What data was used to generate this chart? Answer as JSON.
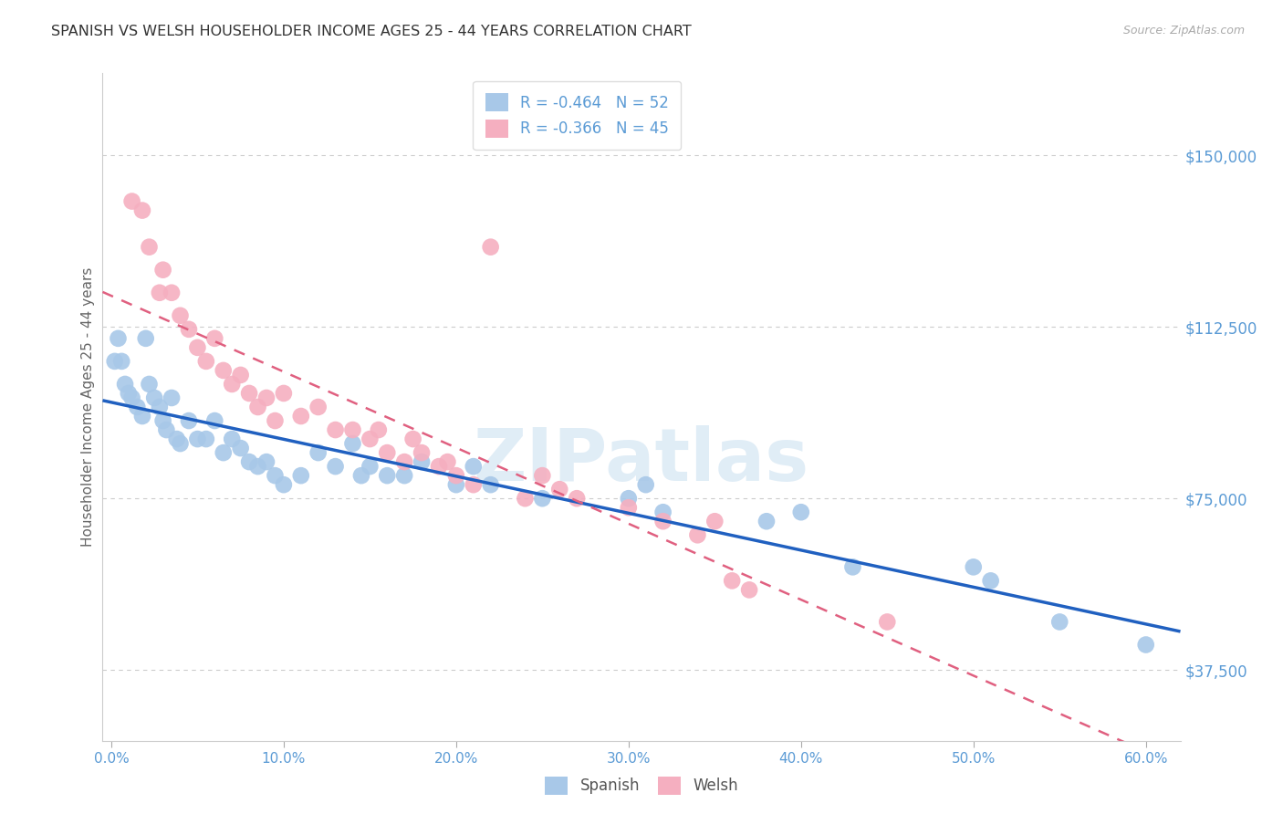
{
  "title": "SPANISH VS WELSH HOUSEHOLDER INCOME AGES 25 - 44 YEARS CORRELATION CHART",
  "source": "Source: ZipAtlas.com",
  "xlabel_ticks": [
    "0.0%",
    "10.0%",
    "20.0%",
    "30.0%",
    "40.0%",
    "50.0%",
    "60.0%"
  ],
  "xlabel_vals": [
    0.0,
    0.1,
    0.2,
    0.3,
    0.4,
    0.5,
    0.6
  ],
  "ylabel": "Householder Income Ages 25 - 44 years",
  "ylabel_ticks": [
    "$37,500",
    "$75,000",
    "$112,500",
    "$150,000"
  ],
  "ylabel_vals": [
    37500,
    75000,
    112500,
    150000
  ],
  "xlim": [
    -0.005,
    0.62
  ],
  "ylim": [
    22000,
    168000
  ],
  "legend1_label": "R = -0.464   N = 52",
  "legend2_label": "R = -0.366   N = 45",
  "watermark": "ZIPatlas",
  "spanish_color": "#a8c8e8",
  "welsh_color": "#f5afc0",
  "trend_spanish_color": "#2060c0",
  "trend_welsh_color": "#e06080",
  "spanish_data": [
    [
      0.002,
      105000
    ],
    [
      0.004,
      110000
    ],
    [
      0.006,
      105000
    ],
    [
      0.008,
      100000
    ],
    [
      0.01,
      98000
    ],
    [
      0.012,
      97000
    ],
    [
      0.015,
      95000
    ],
    [
      0.018,
      93000
    ],
    [
      0.02,
      110000
    ],
    [
      0.022,
      100000
    ],
    [
      0.025,
      97000
    ],
    [
      0.028,
      95000
    ],
    [
      0.03,
      92000
    ],
    [
      0.032,
      90000
    ],
    [
      0.035,
      97000
    ],
    [
      0.038,
      88000
    ],
    [
      0.04,
      87000
    ],
    [
      0.045,
      92000
    ],
    [
      0.05,
      88000
    ],
    [
      0.055,
      88000
    ],
    [
      0.06,
      92000
    ],
    [
      0.065,
      85000
    ],
    [
      0.07,
      88000
    ],
    [
      0.075,
      86000
    ],
    [
      0.08,
      83000
    ],
    [
      0.085,
      82000
    ],
    [
      0.09,
      83000
    ],
    [
      0.095,
      80000
    ],
    [
      0.1,
      78000
    ],
    [
      0.11,
      80000
    ],
    [
      0.12,
      85000
    ],
    [
      0.13,
      82000
    ],
    [
      0.14,
      87000
    ],
    [
      0.145,
      80000
    ],
    [
      0.15,
      82000
    ],
    [
      0.16,
      80000
    ],
    [
      0.17,
      80000
    ],
    [
      0.18,
      83000
    ],
    [
      0.2,
      78000
    ],
    [
      0.21,
      82000
    ],
    [
      0.22,
      78000
    ],
    [
      0.25,
      75000
    ],
    [
      0.3,
      75000
    ],
    [
      0.31,
      78000
    ],
    [
      0.32,
      72000
    ],
    [
      0.38,
      70000
    ],
    [
      0.4,
      72000
    ],
    [
      0.43,
      60000
    ],
    [
      0.5,
      60000
    ],
    [
      0.51,
      57000
    ],
    [
      0.55,
      48000
    ],
    [
      0.6,
      43000
    ]
  ],
  "welsh_data": [
    [
      0.012,
      140000
    ],
    [
      0.018,
      138000
    ],
    [
      0.022,
      130000
    ],
    [
      0.028,
      120000
    ],
    [
      0.03,
      125000
    ],
    [
      0.035,
      120000
    ],
    [
      0.04,
      115000
    ],
    [
      0.045,
      112000
    ],
    [
      0.05,
      108000
    ],
    [
      0.055,
      105000
    ],
    [
      0.06,
      110000
    ],
    [
      0.065,
      103000
    ],
    [
      0.07,
      100000
    ],
    [
      0.075,
      102000
    ],
    [
      0.08,
      98000
    ],
    [
      0.085,
      95000
    ],
    [
      0.09,
      97000
    ],
    [
      0.095,
      92000
    ],
    [
      0.1,
      98000
    ],
    [
      0.11,
      93000
    ],
    [
      0.12,
      95000
    ],
    [
      0.13,
      90000
    ],
    [
      0.14,
      90000
    ],
    [
      0.15,
      88000
    ],
    [
      0.155,
      90000
    ],
    [
      0.16,
      85000
    ],
    [
      0.17,
      83000
    ],
    [
      0.175,
      88000
    ],
    [
      0.18,
      85000
    ],
    [
      0.19,
      82000
    ],
    [
      0.195,
      83000
    ],
    [
      0.2,
      80000
    ],
    [
      0.21,
      78000
    ],
    [
      0.22,
      130000
    ],
    [
      0.24,
      75000
    ],
    [
      0.25,
      80000
    ],
    [
      0.26,
      77000
    ],
    [
      0.27,
      75000
    ],
    [
      0.3,
      73000
    ],
    [
      0.32,
      70000
    ],
    [
      0.34,
      67000
    ],
    [
      0.35,
      70000
    ],
    [
      0.36,
      57000
    ],
    [
      0.37,
      55000
    ],
    [
      0.45,
      48000
    ]
  ]
}
